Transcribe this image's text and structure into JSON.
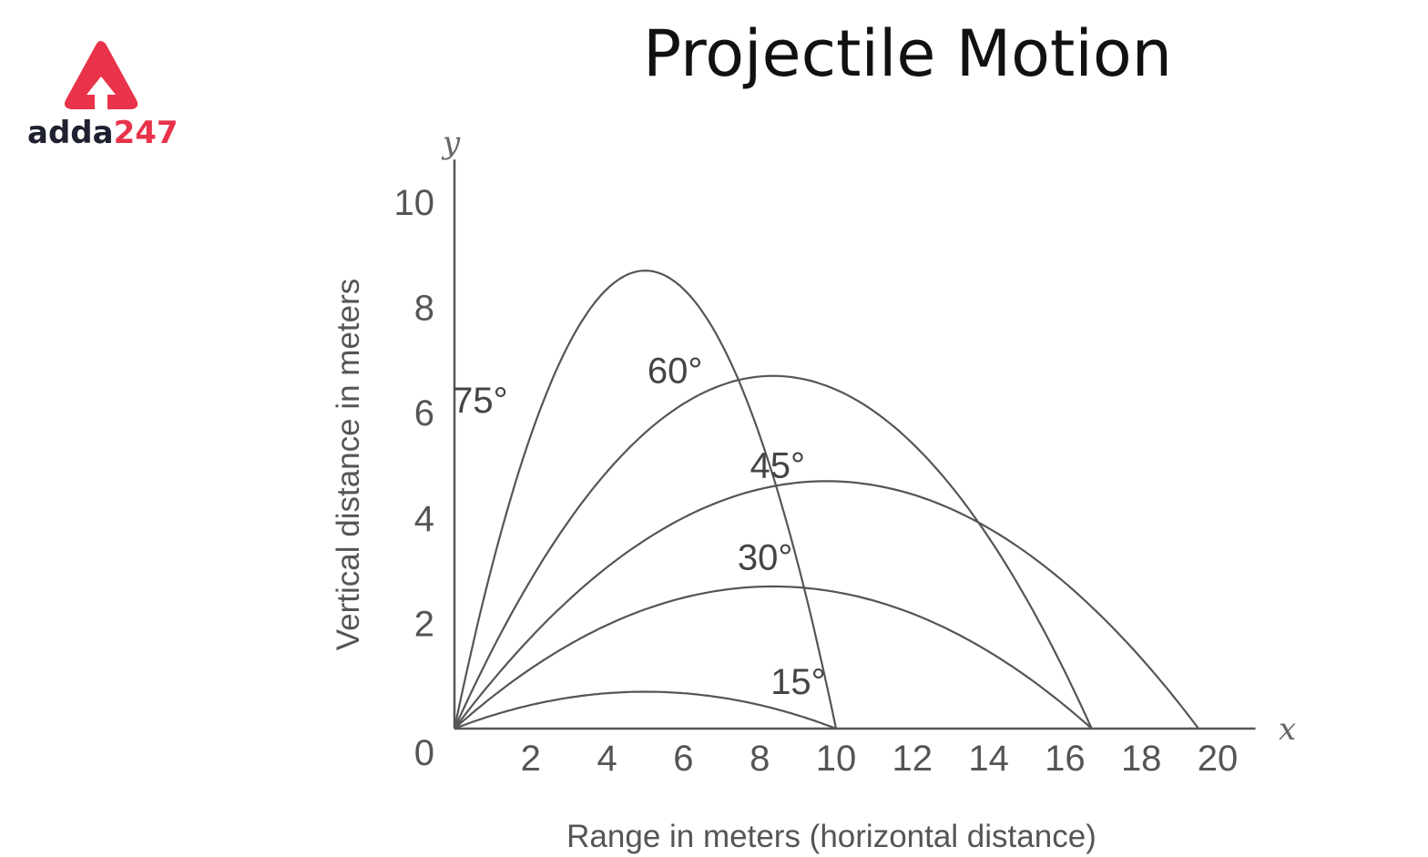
{
  "page": {
    "title": "Projectile Motion"
  },
  "brand": {
    "name_part1": "adda",
    "name_part2": "247",
    "accent_color": "#e8334a",
    "dark_color": "#1f2030",
    "icon": "upward-arrow-triangle-icon"
  },
  "chart_data": {
    "type": "line",
    "title": "Projectile Motion",
    "xlabel": "Range in meters (horizontal distance)",
    "ylabel": "Vertical distance in meters",
    "x_axis_letter": "x",
    "y_axis_letter": "y",
    "xlim": [
      0,
      20.8
    ],
    "ylim": [
      0,
      10.5
    ],
    "origin_label": "0",
    "x_ticks": [
      "2",
      "4",
      "6",
      "8",
      "10",
      "12",
      "14",
      "16",
      "18",
      "20"
    ],
    "y_ticks": [
      "2",
      "4",
      "6",
      "8",
      "10"
    ],
    "grid": false,
    "series": [
      {
        "name": "75°",
        "range": 10.0,
        "max_height": 8.7
      },
      {
        "name": "60°",
        "range": 16.7,
        "max_height": 6.7
      },
      {
        "name": "45°",
        "range": 19.5,
        "max_height": 4.7
      },
      {
        "name": "30°",
        "range": 16.7,
        "max_height": 2.7
      },
      {
        "name": "15°",
        "range": 10.0,
        "max_height": 0.7
      }
    ]
  }
}
